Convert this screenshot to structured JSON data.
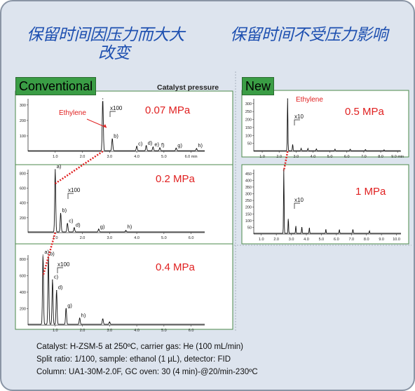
{
  "titles": {
    "left_line1": "保留时间因压力而大大",
    "left_line2": "改变",
    "right": "保留时间不受压力影响"
  },
  "labels": {
    "conventional": "Conventional",
    "new": "New",
    "catalyst_pressure": "Catalyst pressure"
  },
  "footer": {
    "line1": "Catalyst: H-ZSM-5 at 250ºC, carrier gas: He (100 mL/min)",
    "line2": "Split ratio: 1/100, sample: ethanol (1 µL), detector: FID",
    "line3": "Column: UA1-30M-2.0F, GC oven: 30 (4 min)-@20/min-230ºC"
  },
  "colors": {
    "title": "#1d4fb0",
    "pressure": "#e02020",
    "dotted_link": "#e02020",
    "tag_background": "#3a9d45",
    "slide_background": "#dde4ee"
  },
  "chart_data": [
    {
      "type": "line",
      "panel": "conventional-0.07",
      "pressure_label": "0.07 MPa",
      "xlim": [
        0,
        6.5
      ],
      "ylim": [
        0,
        340
      ],
      "x_ticks": [
        "1.0",
        "2.0",
        "3.0",
        "4.0",
        "5.0",
        "6.0 min"
      ],
      "y_ticks": [
        "100",
        "200",
        "300"
      ],
      "zoom_label": "x100",
      "compound_label": "Ethylene",
      "peaks": [
        {
          "label": "",
          "x": 2.75,
          "y": 340
        },
        {
          "label": "b)",
          "x": 3.1,
          "y": 80
        },
        {
          "label": "c)",
          "x": 4.0,
          "y": 30
        },
        {
          "label": "d)",
          "x": 4.35,
          "y": 35
        },
        {
          "label": "e)",
          "x": 4.6,
          "y": 25
        },
        {
          "label": "f)",
          "x": 4.85,
          "y": 20
        },
        {
          "label": "g)",
          "x": 5.45,
          "y": 18
        },
        {
          "label": "h)",
          "x": 6.2,
          "y": 15
        }
      ]
    },
    {
      "type": "line",
      "panel": "conventional-0.2",
      "pressure_label": "0.2 MPa",
      "xlim": [
        0,
        6.5
      ],
      "ylim": [
        0,
        850
      ],
      "x_ticks": [
        "1.0",
        "2.0",
        "3.0",
        "4.0",
        "5.0",
        "6.0"
      ],
      "y_ticks": [
        "200",
        "400",
        "600",
        "800"
      ],
      "zoom_label": "x100",
      "peaks": [
        {
          "label": "a)",
          "x": 1.0,
          "y": 850
        },
        {
          "label": "b)",
          "x": 1.2,
          "y": 260
        },
        {
          "label": "c)",
          "x": 1.45,
          "y": 120
        },
        {
          "label": "d)",
          "x": 1.7,
          "y": 60
        },
        {
          "label": "g)",
          "x": 2.6,
          "y": 40
        },
        {
          "label": "h)",
          "x": 3.6,
          "y": 20
        }
      ]
    },
    {
      "type": "line",
      "panel": "conventional-0.4",
      "pressure_label": "0.4 MPa",
      "xlim": [
        0,
        6.5
      ],
      "ylim": [
        0,
        850
      ],
      "x_ticks": [
        "1.0",
        "2.0",
        "3.0",
        "4.0",
        "5.0",
        "6.0"
      ],
      "y_ticks": [
        "200",
        "400",
        "600",
        "800"
      ],
      "zoom_label": "x100",
      "peaks": [
        {
          "label": "a)",
          "x": 0.55,
          "y": 850
        },
        {
          "label": "b)",
          "x": 0.75,
          "y": 830
        },
        {
          "label": "c)",
          "x": 0.9,
          "y": 550
        },
        {
          "label": "d)",
          "x": 1.05,
          "y": 420
        },
        {
          "label": "g)",
          "x": 1.4,
          "y": 200
        },
        {
          "label": "h)",
          "x": 1.9,
          "y": 80
        },
        {
          "label": "",
          "x": 2.75,
          "y": 70
        },
        {
          "label": "",
          "x": 3.0,
          "y": 30
        }
      ]
    },
    {
      "type": "line",
      "panel": "new-0.5",
      "pressure_label": "0.5 MPa",
      "xlim": [
        0.5,
        9.2
      ],
      "ylim": [
        0,
        330
      ],
      "x_ticks": [
        "1.0",
        "2.0",
        "3.0",
        "4.0",
        "5.0",
        "6.0",
        "7.0",
        "8.0",
        "9.0 min"
      ],
      "y_ticks": [
        "50",
        "100",
        "150",
        "200",
        "250",
        "300"
      ],
      "zoom_label": "x10",
      "compound_label": "Ethylene",
      "peaks": [
        {
          "label": "",
          "x": 2.5,
          "y": 330
        },
        {
          "label": "",
          "x": 2.8,
          "y": 40
        },
        {
          "label": "",
          "x": 3.3,
          "y": 15
        },
        {
          "label": "",
          "x": 3.7,
          "y": 14
        },
        {
          "label": "",
          "x": 4.2,
          "y": 12
        },
        {
          "label": "",
          "x": 5.3,
          "y": 10
        },
        {
          "label": "",
          "x": 6.2,
          "y": 10
        },
        {
          "label": "",
          "x": 7.1,
          "y": 8
        },
        {
          "label": "",
          "x": 8.2,
          "y": 6
        }
      ]
    },
    {
      "type": "line",
      "panel": "new-1",
      "pressure_label": "1 MPa",
      "xlim": [
        0.5,
        10.3
      ],
      "ylim": [
        0,
        480
      ],
      "x_ticks": [
        "1.0",
        "2.0",
        "3.0",
        "4.0",
        "5.0",
        "6.0",
        "7.0",
        "8.0",
        "9.0",
        "10.0"
      ],
      "y_ticks": [
        "50",
        "100",
        "150",
        "200",
        "250",
        "300",
        "350",
        "400",
        "450"
      ],
      "zoom_label": "x10",
      "peaks": [
        {
          "label": "",
          "x": 2.5,
          "y": 480
        },
        {
          "label": "",
          "x": 2.8,
          "y": 110
        },
        {
          "label": "",
          "x": 3.3,
          "y": 55
        },
        {
          "label": "",
          "x": 3.7,
          "y": 48
        },
        {
          "label": "",
          "x": 4.2,
          "y": 42
        },
        {
          "label": "",
          "x": 5.3,
          "y": 30
        },
        {
          "label": "",
          "x": 6.2,
          "y": 28
        },
        {
          "label": "",
          "x": 7.1,
          "y": 30
        },
        {
          "label": "",
          "x": 8.2,
          "y": 18
        }
      ]
    }
  ]
}
